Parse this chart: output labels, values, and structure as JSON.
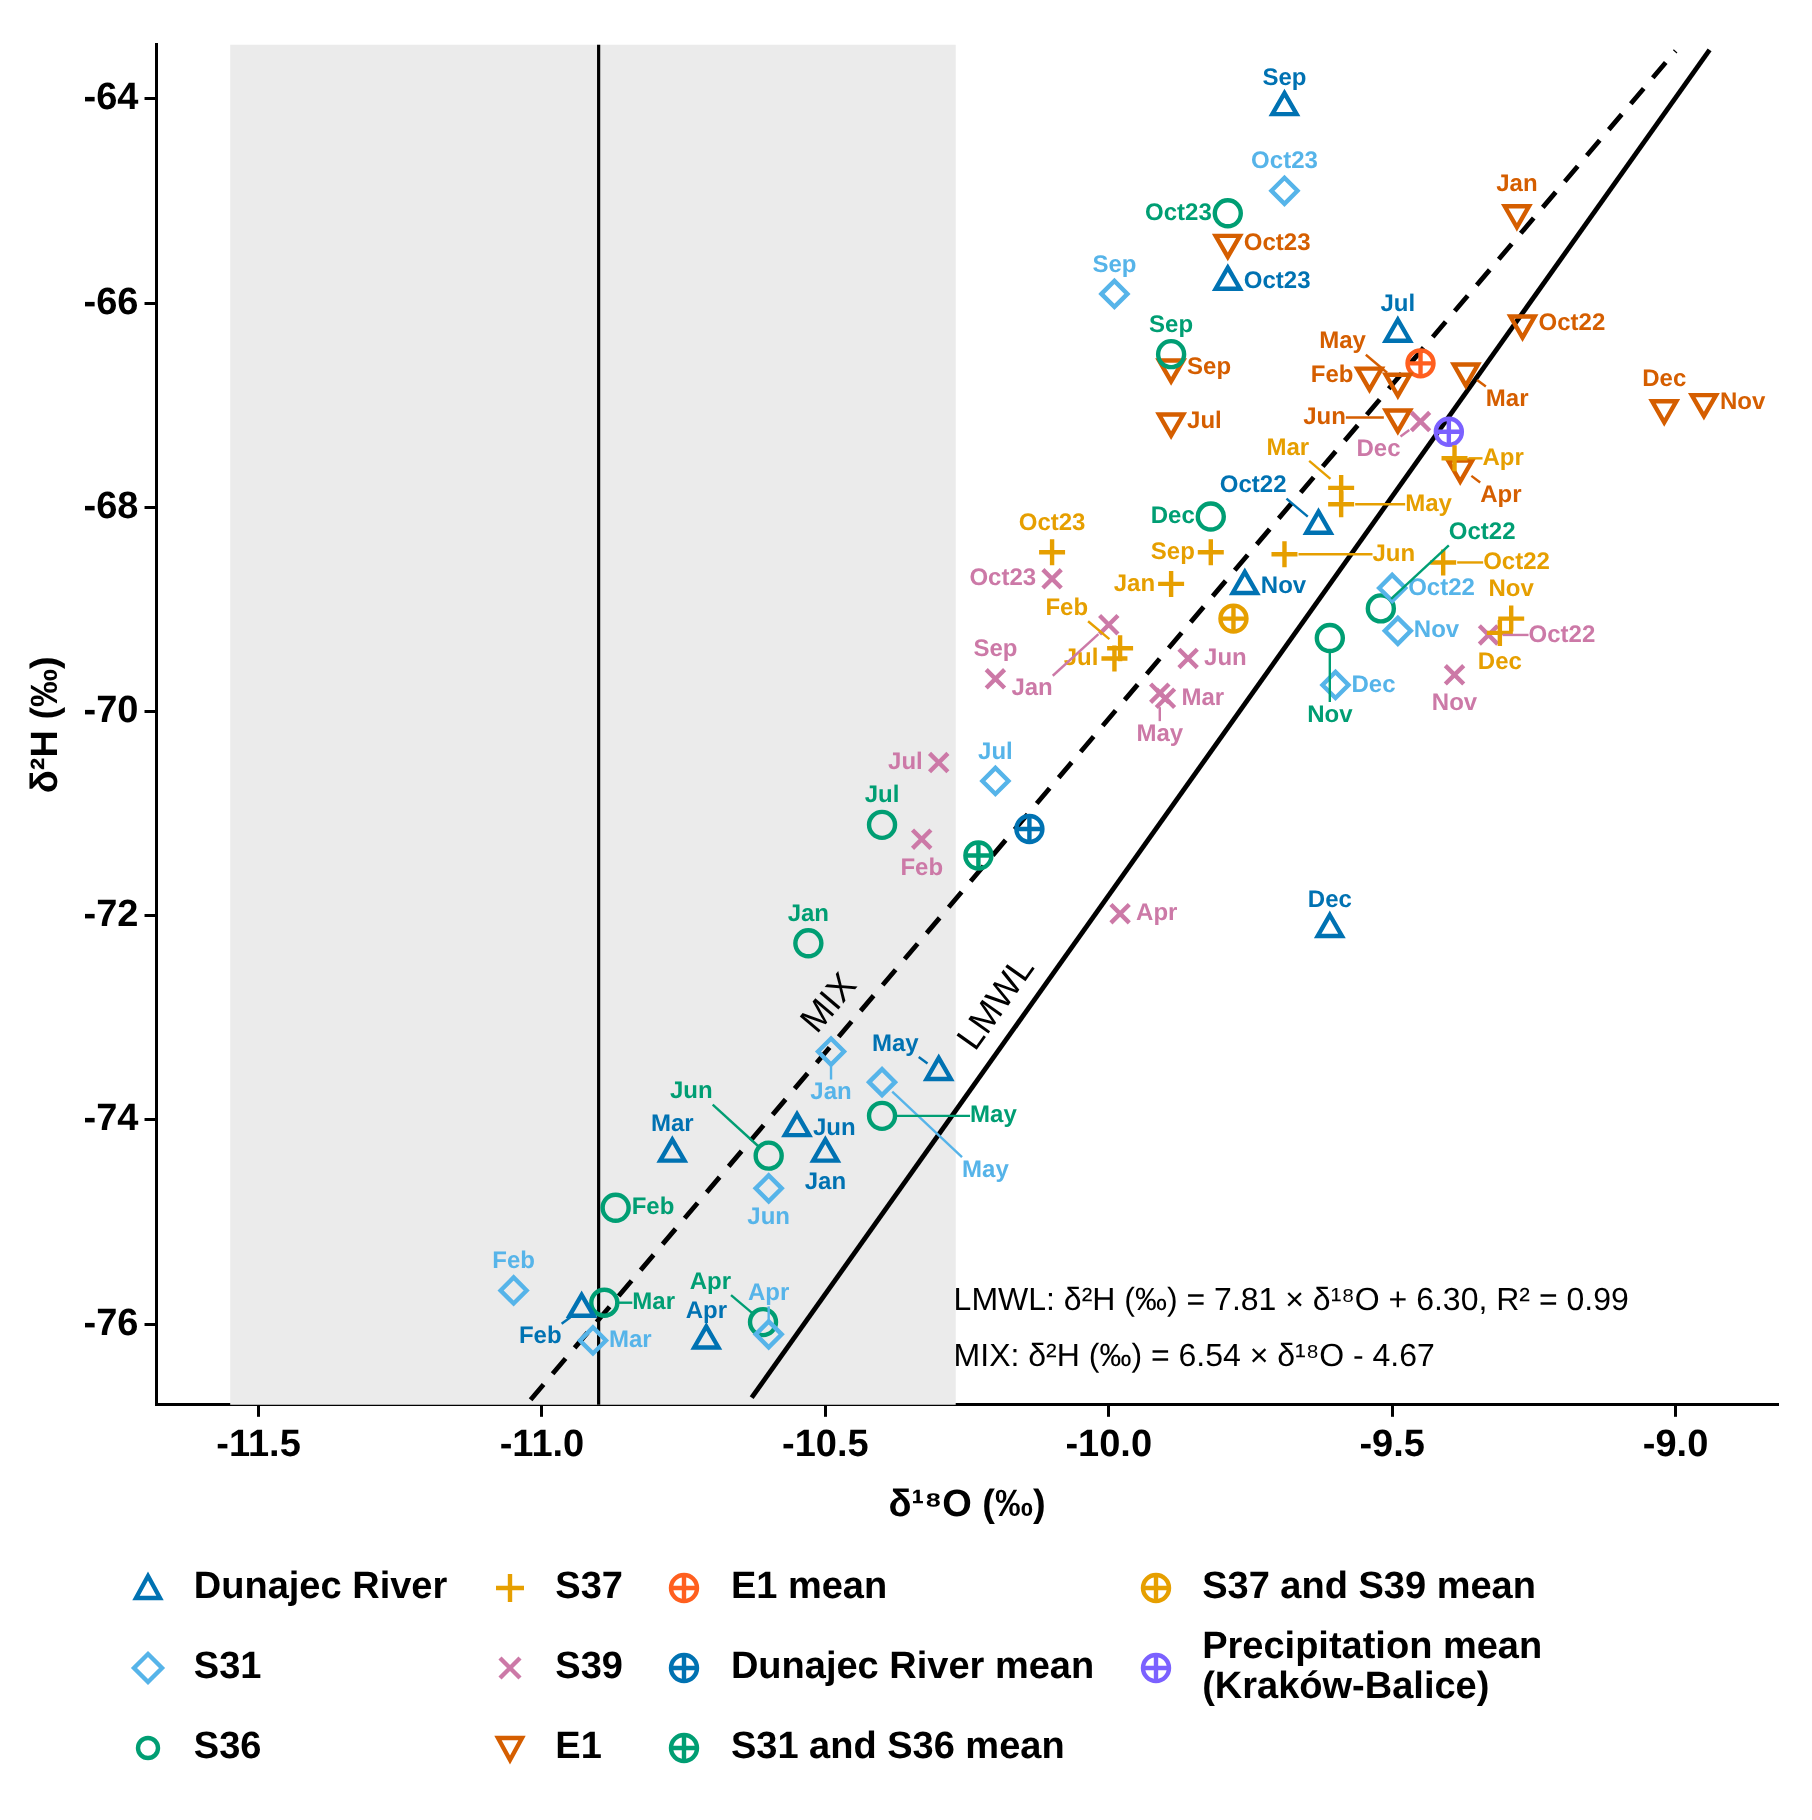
{
  "chart_data": {
    "type": "scatter",
    "xlabel": "δ¹⁸O (‰)",
    "ylabel": "δ²H (‰)",
    "xlim": [
      -11.68,
      -8.82
    ],
    "ylim": [
      -76.79,
      -63.47
    ],
    "xticks": [
      -11.5,
      {
        "value": -11,
        "label": "-11.0"
      },
      -10.5,
      {
        "value": -10,
        "label": "-10.0"
      },
      -9.5,
      {
        "value": -9,
        "label": "-9.0"
      }
    ],
    "yticks": [
      -76,
      -74,
      -72,
      -70,
      -68,
      -66,
      -64
    ],
    "grid": false,
    "legend": "bottom",
    "bands": [
      {
        "axis": "x",
        "from": -11.55,
        "to": -10.27,
        "color": "#ebebeb"
      }
    ],
    "ref_lines": [
      {
        "axis": "x",
        "value": -10.9,
        "color": "#000000"
      }
    ],
    "annotations": [
      "LMWL: δ²H (‰) = 7.81 × δ¹⁸O + 6.30, R² = 0.99",
      "MIX: δ²H (‰) = 6.54 × δ¹⁸O - 4.67"
    ],
    "series": [
      {
        "name": "Dunajec River",
        "color": "#0072b2",
        "marker": "triangle",
        "x": [
          -9.69,
          -9.79,
          -9.49,
          -9.76,
          -9.63,
          -9.61,
          -10.3,
          -10.77,
          -10.55,
          -10.5,
          -10.93,
          -10.71
        ],
        "values": [
          -64.08,
          -65.79,
          -66.3,
          -68.77,
          -68.18,
          -72.13,
          -73.53,
          -74.33,
          -74.08,
          -74.33,
          -75.85,
          -76.16
        ],
        "value_labels": [
          "Sep",
          "Oct23",
          "Jul",
          "Nov",
          "Oct22",
          "Dec",
          "May",
          "Mar",
          "Jun",
          "Jan",
          "Feb",
          "Apr"
        ]
      },
      {
        "name": "S31",
        "color": "#56b4e9",
        "marker": "diamond",
        "x": [
          -9.69,
          -9.99,
          -9.5,
          -9.49,
          -9.6,
          -10.2,
          -10.49,
          -10.4,
          -10.6,
          -11.05,
          -10.91,
          -10.6
        ],
        "values": [
          -64.9,
          -65.91,
          -68.79,
          -69.21,
          -69.74,
          -70.68,
          -73.33,
          -73.63,
          -74.67,
          -75.67,
          -76.16,
          -76.1
        ],
        "value_labels": [
          "Oct23",
          "Sep",
          "Oct22",
          "Nov",
          "Dec",
          "Jul",
          "Jan",
          "May",
          "Jun",
          "Feb",
          "Mar",
          "Apr"
        ]
      },
      {
        "name": "S36",
        "color": "#009e73",
        "marker": "circle",
        "x": [
          -9.79,
          -9.89,
          -9.82,
          -9.61,
          -9.52,
          -10.4,
          -10.53,
          -10.4,
          -10.6,
          -10.87,
          -10.89,
          -10.61
        ],
        "values": [
          -65.12,
          -66.5,
          -68.09,
          -69.28,
          -68.99,
          -71.11,
          -72.27,
          -73.96,
          -74.35,
          -74.86,
          -75.79,
          -75.98
        ],
        "value_labels": [
          "Oct23",
          "Sep",
          "Dec",
          "Nov",
          "Oct22",
          "Jul",
          "Jan",
          "May",
          "Jun",
          "Feb",
          "Mar",
          "Apr"
        ]
      },
      {
        "name": "S37",
        "color": "#e69f00",
        "marker": "plus",
        "x": [
          -10.1,
          -9.82,
          -9.89,
          -9.99,
          -9.98,
          -9.59,
          -9.59,
          -9.69,
          -9.41,
          -9.39,
          -9.29,
          -9.31
        ],
        "values": [
          -68.44,
          -68.44,
          -68.75,
          -69.48,
          -69.38,
          -67.81,
          -67.97,
          -68.46,
          -68.54,
          -67.52,
          -69.09,
          -69.23
        ],
        "value_labels": [
          "Oct23",
          "Sep",
          "Jan",
          "Jul",
          "Feb",
          "Mar",
          "May",
          "Jun",
          "Oct22",
          "Apr",
          "Nov",
          "Dec"
        ]
      },
      {
        "name": "S39",
        "color": "#cc79a7",
        "marker": "x",
        "x": [
          -10.1,
          -10.0,
          -10.2,
          -9.86,
          -9.9,
          -9.91,
          -10.3,
          -10.33,
          -9.98,
          -9.39,
          -9.33,
          -9.45
        ],
        "values": [
          -68.7,
          -69.15,
          -69.68,
          -69.48,
          -69.87,
          -69.82,
          -70.5,
          -71.25,
          -71.98,
          -69.64,
          -69.25,
          -67.16
        ],
        "value_labels": [
          "Oct23",
          "Jan",
          "Sep",
          "Jun",
          "Mar",
          "May",
          "Jul",
          "Feb",
          "Apr",
          "Nov",
          "Oct22",
          "Dec"
        ]
      },
      {
        "name": "E1",
        "color": "#d55e00",
        "marker": "triangle-down",
        "x": [
          -9.79,
          -9.28,
          -9.89,
          -9.89,
          -9.27,
          -9.54,
          -9.49,
          -9.37,
          -9.49,
          -9.38,
          -9.02,
          -8.95
        ],
        "values": [
          -65.41,
          -65.12,
          -66.63,
          -67.16,
          -66.2,
          -66.71,
          -66.77,
          -66.67,
          -67.12,
          -67.61,
          -67.03,
          -66.97
        ],
        "value_labels": [
          "Oct23",
          "Jan",
          "Sep",
          "Jul",
          "Oct22",
          "Feb",
          "May",
          "Mar",
          "Jun",
          "Apr",
          "Dec",
          "Nov"
        ]
      },
      {
        "name": "E1 mean",
        "color": "#ff5f1f",
        "marker": "circle-plus",
        "x": [
          -9.45
        ],
        "values": [
          -66.59
        ]
      },
      {
        "name": "Dunajec River mean",
        "color": "#0072b2",
        "marker": "circle-plus",
        "x": [
          -10.14
        ],
        "values": [
          -71.15
        ]
      },
      {
        "name": "S31 and S36 mean",
        "color": "#009e73",
        "marker": "circle-plus",
        "x": [
          -10.23
        ],
        "values": [
          -71.41
        ]
      },
      {
        "name": "S37 and S39 mean",
        "color": "#e69f00",
        "marker": "circle-plus",
        "x": [
          -9.78
        ],
        "values": [
          -69.09
        ]
      },
      {
        "name": "Precipitation mean (Kraków-Balice)",
        "color": "#7b61ff",
        "marker": "circle-plus",
        "x": [
          -9.4
        ],
        "values": [
          -67.26
        ]
      },
      {
        "name": "LMWL",
        "type": "line",
        "color": "#000000",
        "marker": "none",
        "line_style": "solid",
        "x": [
          -10.63,
          -8.94
        ],
        "values": [
          -76.72,
          -63.52
        ]
      },
      {
        "name": "MIX",
        "type": "line",
        "color": "#000000",
        "marker": "none",
        "line_style": "dashed",
        "x": [
          -11.02,
          -9.0
        ],
        "values": [
          -76.74,
          -63.53
        ]
      }
    ]
  }
}
